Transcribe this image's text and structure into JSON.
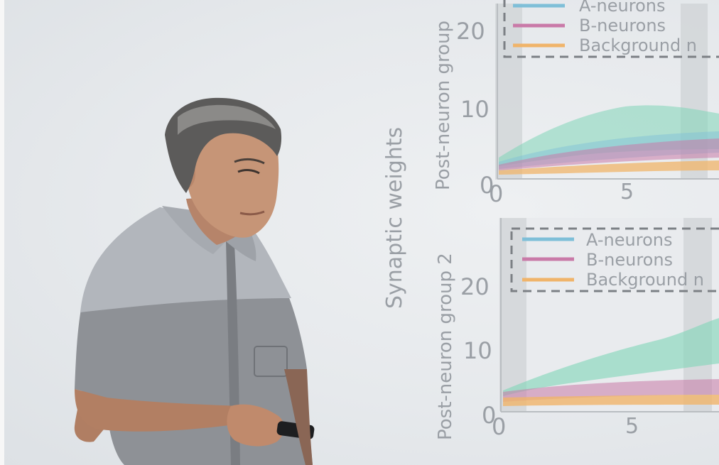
{
  "slide": {
    "y_label": "Synaptic weights",
    "panels": [
      {
        "ylabel": "Post-neuron group",
        "legend": [
          "A-neurons",
          "B-neurons",
          "Background n"
        ],
        "y_ticks": [
          "0",
          "10",
          "20"
        ],
        "x_ticks": [
          "0",
          "5"
        ]
      },
      {
        "ylabel": "Post-neuron group 2",
        "legend": [
          "A-neurons",
          "B-neurons",
          "Background n"
        ],
        "y_ticks": [
          "0",
          "10",
          "20"
        ],
        "x_ticks": [
          "0",
          "5"
        ]
      }
    ]
  },
  "colors": {
    "a_neurons": "#7fbfd8",
    "b_neurons": "#c97aa8",
    "background_neurons": "#f0b46a",
    "green_traces": "#7fd6b8"
  },
  "scene": {
    "presenter": "man-in-checked-shirt",
    "held_object": "clicker-remote-icon"
  }
}
